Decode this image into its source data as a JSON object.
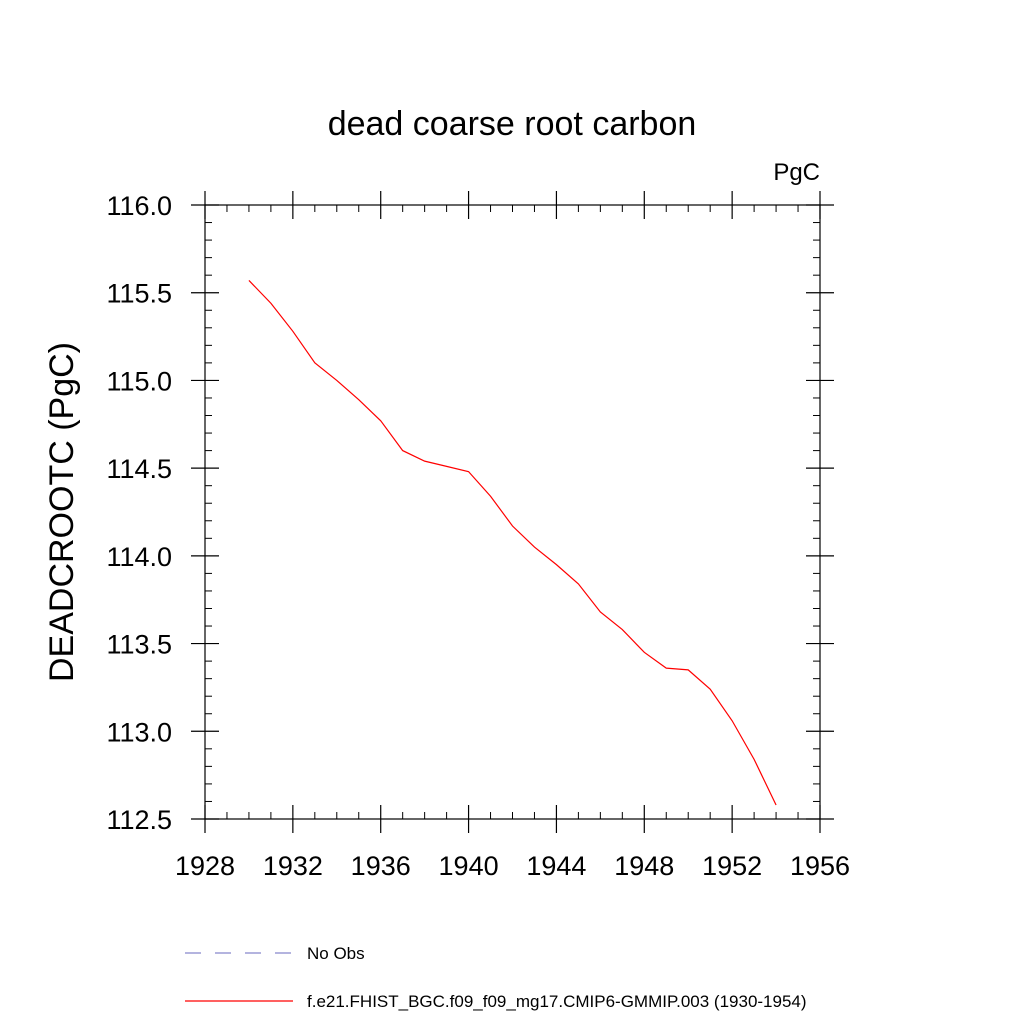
{
  "chart_data": {
    "type": "line",
    "title": "dead coarse root carbon",
    "units_label": "PgC",
    "xlabel": "",
    "ylabel": "DEADCROOTC  (PgC)",
    "xlim": [
      1928,
      1956
    ],
    "ylim": [
      112.5,
      116.0
    ],
    "x_ticks": [
      1928,
      1932,
      1936,
      1940,
      1944,
      1948,
      1952,
      1956
    ],
    "x_tick_labels": [
      "1928",
      "1932",
      "1936",
      "1940",
      "1944",
      "1948",
      "1952",
      "1956"
    ],
    "y_ticks": [
      112.5,
      113.0,
      113.5,
      114.0,
      114.5,
      115.0,
      115.5,
      116.0
    ],
    "y_tick_labels": [
      "112.5",
      "113.0",
      "113.5",
      "114.0",
      "114.5",
      "115.0",
      "115.5",
      "116.0"
    ],
    "grid": false,
    "series": [
      {
        "name": "f.e21.FHIST_BGC.f09_f09_mg17.CMIP6-GMMIP.003 (1930-1954)",
        "color": "#ff0000",
        "line_style": "solid",
        "x": [
          1930,
          1931,
          1932,
          1933,
          1934,
          1935,
          1936,
          1937,
          1938,
          1939,
          1940,
          1941,
          1942,
          1943,
          1944,
          1945,
          1946,
          1947,
          1948,
          1949,
          1950,
          1951,
          1952,
          1953,
          1954
        ],
        "values": [
          115.57,
          115.44,
          115.28,
          115.1,
          115.0,
          114.89,
          114.77,
          114.6,
          114.54,
          114.51,
          114.48,
          114.34,
          114.17,
          114.05,
          113.95,
          113.84,
          113.68,
          113.58,
          113.45,
          113.36,
          113.35,
          113.24,
          113.06,
          112.84,
          112.58
        ]
      }
    ],
    "legend": {
      "placement": "bottom",
      "entries": [
        {
          "label": "No Obs",
          "color": "#8888cc",
          "line_style": "dashed"
        },
        {
          "label": "f.e21.FHIST_BGC.f09_f09_mg17.CMIP6-GMMIP.003 (1930-1954)",
          "color": "#ff0000",
          "line_style": "solid"
        }
      ]
    }
  }
}
